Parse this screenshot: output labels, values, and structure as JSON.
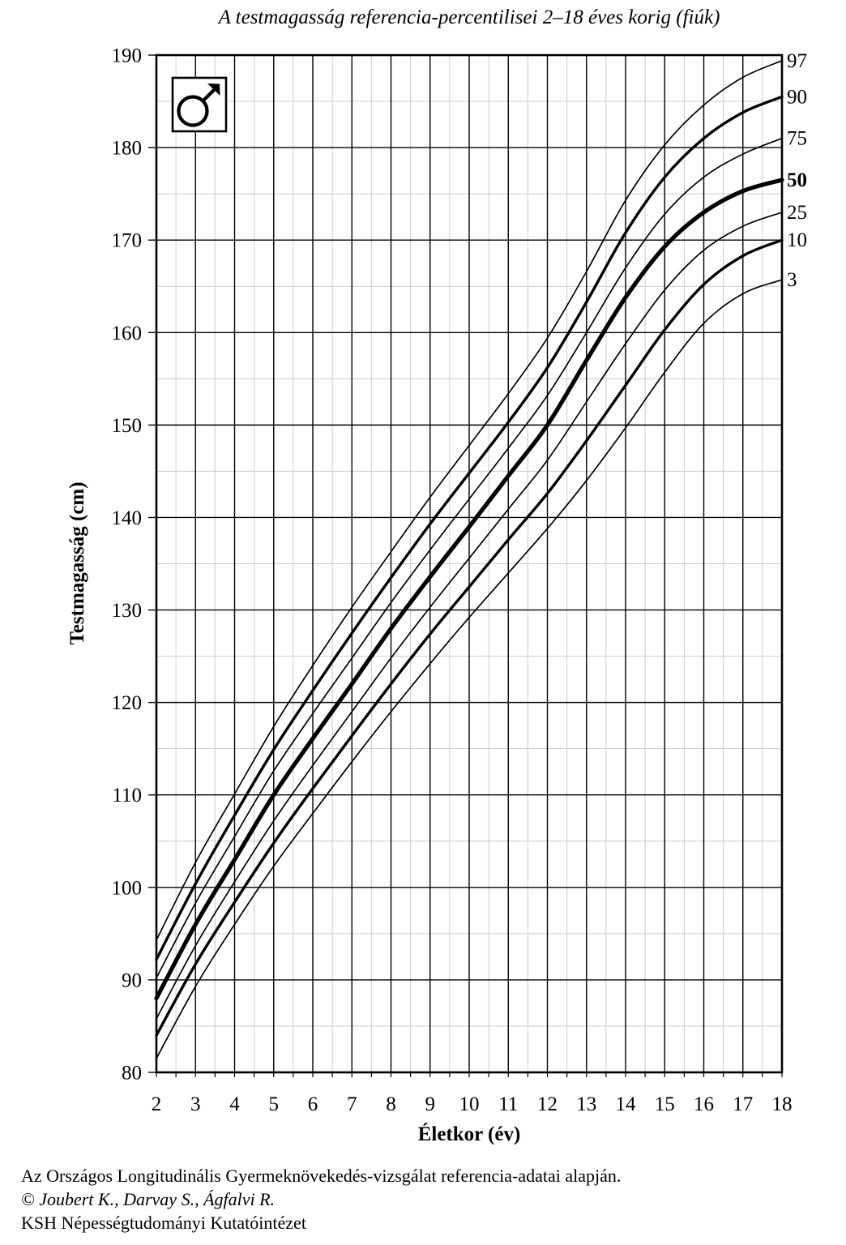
{
  "page": {
    "footer_line1": "Az Országos Longitudinális Gyermeknövekedés-vizsgálat referencia-adatai alapján.",
    "footer_line2": "© Joubert K., Darvay S., Ágfalvi R.",
    "footer_line3": "KSH Népességtudományi Kutatóintézet"
  },
  "icon": {
    "name": "male-symbol"
  },
  "colors": {
    "curve": "#000000",
    "major_grid": "#000000",
    "minor_grid": "#cccccc",
    "background": "#ffffff"
  },
  "chart_data": {
    "type": "line",
    "title": "A testmagasság referencia-percentilisei 2–18 éves korig (fiúk)",
    "xlabel": "Életkor (év)",
    "ylabel": "Testmagasság (cm)",
    "xlim": [
      2,
      18
    ],
    "ylim": [
      80,
      190
    ],
    "x_major_step": 1,
    "x_minor_step": 0.5,
    "y_major_step": 10,
    "y_minor_step": 5,
    "grid": "major-and-minor",
    "legend_position": "right-edge-labels",
    "x_ticks": [
      2,
      3,
      4,
      5,
      6,
      7,
      8,
      9,
      10,
      11,
      12,
      13,
      14,
      15,
      16,
      17,
      18
    ],
    "y_ticks": [
      80,
      90,
      100,
      110,
      120,
      130,
      140,
      150,
      160,
      170,
      180,
      190
    ],
    "x": [
      2,
      3,
      4,
      5,
      6,
      7,
      8,
      9,
      10,
      11,
      12,
      13,
      14,
      15,
      16,
      17,
      18
    ],
    "series": [
      {
        "name": "97",
        "label": "97",
        "weight": "thin",
        "values": [
          94.3,
          102.7,
          110.1,
          117.4,
          124.0,
          130.3,
          136.3,
          142.2,
          147.8,
          153.4,
          159.4,
          166.6,
          174.3,
          180.3,
          184.6,
          187.6,
          189.4
        ]
      },
      {
        "name": "90",
        "label": "90",
        "weight": "medium",
        "values": [
          92.2,
          100.4,
          107.8,
          114.9,
          121.3,
          127.5,
          133.5,
          139.3,
          144.8,
          150.3,
          156.2,
          163.3,
          170.8,
          176.8,
          181.0,
          183.8,
          185.5
        ]
      },
      {
        "name": "75",
        "label": "75",
        "weight": "thin",
        "values": [
          90.2,
          98.3,
          105.5,
          112.6,
          118.8,
          124.8,
          130.8,
          136.5,
          142.0,
          147.5,
          153.2,
          160.0,
          167.0,
          172.8,
          176.8,
          179.3,
          181.0
        ]
      },
      {
        "name": "50",
        "label": "50",
        "weight": "bold",
        "values": [
          88.0,
          96.0,
          103.0,
          110.0,
          116.1,
          122.0,
          128.0,
          133.6,
          139.0,
          144.5,
          150.0,
          157.0,
          163.8,
          169.3,
          173.0,
          175.3,
          176.5
        ]
      },
      {
        "name": "25",
        "label": "25",
        "weight": "thin",
        "values": [
          85.8,
          93.7,
          100.6,
          107.2,
          113.2,
          119.0,
          124.8,
          130.3,
          135.6,
          140.9,
          146.2,
          152.5,
          158.8,
          164.6,
          168.9,
          171.5,
          173.0
        ]
      },
      {
        "name": "10",
        "label": "10",
        "weight": "medium",
        "values": [
          84.0,
          91.7,
          98.4,
          104.8,
          110.7,
          116.4,
          122.0,
          127.4,
          132.5,
          137.6,
          142.6,
          148.3,
          154.3,
          160.3,
          165.2,
          168.3,
          170.0
        ]
      },
      {
        "name": "3",
        "label": "3",
        "weight": "thin",
        "values": [
          81.5,
          89.3,
          96.0,
          102.3,
          108.0,
          113.6,
          119.0,
          124.2,
          129.2,
          134.0,
          138.8,
          144.0,
          149.7,
          155.7,
          161.0,
          164.2,
          165.7
        ]
      }
    ]
  }
}
